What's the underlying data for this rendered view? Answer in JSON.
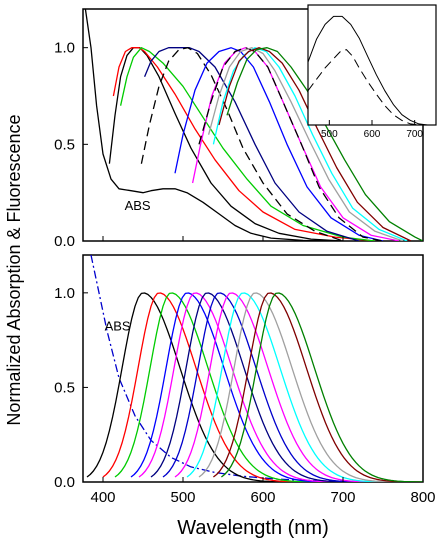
{
  "figure": {
    "ylabel": "Normalized Absorption & Fluorescence",
    "xlabel": "Wavelength (nm)"
  },
  "chart_data": [
    {
      "type": "line",
      "panel": "top",
      "xlim": [
        375,
        800
      ],
      "ylim": [
        0,
        1.2
      ],
      "xticks": [
        400,
        500,
        600,
        700,
        800
      ],
      "yticks": [
        0.0,
        0.5,
        1.0
      ],
      "ytick_labels": [
        "0.0",
        "0.5",
        "1.0"
      ],
      "annotations": [
        {
          "text": "ABS",
          "x": 427,
          "y": 0.16
        }
      ],
      "series": [
        {
          "color": "#000000",
          "dash": "solid",
          "points": [
            [
              378,
              1.2
            ],
            [
              385,
              1.0
            ],
            [
              392,
              0.7
            ],
            [
              400,
              0.45
            ],
            [
              410,
              0.32
            ],
            [
              420,
              0.27
            ],
            [
              435,
              0.26
            ],
            [
              450,
              0.25
            ],
            [
              460,
              0.26
            ],
            [
              475,
              0.27
            ],
            [
              490,
              0.27
            ],
            [
              505,
              0.25
            ],
            [
              525,
              0.2
            ],
            [
              545,
              0.14
            ],
            [
              565,
              0.08
            ],
            [
              585,
              0.04
            ],
            [
              610,
              0.015
            ],
            [
              650,
              0.003
            ],
            [
              700,
              0.0
            ]
          ]
        },
        {
          "color": "#000000",
          "dash": "solid",
          "points": [
            [
              408,
              0.4
            ],
            [
              415,
              0.65
            ],
            [
              422,
              0.85
            ],
            [
              430,
              0.96
            ],
            [
              438,
              1.0
            ],
            [
              446,
              1.0
            ],
            [
              455,
              0.96
            ],
            [
              470,
              0.85
            ],
            [
              490,
              0.66
            ],
            [
              510,
              0.48
            ],
            [
              535,
              0.3
            ],
            [
              560,
              0.18
            ],
            [
              590,
              0.09
            ],
            [
              620,
              0.04
            ],
            [
              660,
              0.01
            ],
            [
              700,
              0.0
            ]
          ]
        },
        {
          "color": "#ff0000",
          "dash": "solid",
          "points": [
            [
              413,
              0.75
            ],
            [
              420,
              0.9
            ],
            [
              428,
              0.98
            ],
            [
              436,
              1.0
            ],
            [
              445,
              1.0
            ],
            [
              452,
              0.98
            ],
            [
              468,
              0.9
            ],
            [
              490,
              0.76
            ],
            [
              515,
              0.58
            ],
            [
              540,
              0.42
            ],
            [
              570,
              0.26
            ],
            [
              600,
              0.15
            ],
            [
              640,
              0.06
            ],
            [
              690,
              0.02
            ],
            [
              740,
              0.0
            ]
          ]
        },
        {
          "color": "#00cc00",
          "dash": "solid",
          "points": [
            [
              422,
              0.7
            ],
            [
              430,
              0.85
            ],
            [
              438,
              0.95
            ],
            [
              448,
              1.0
            ],
            [
              458,
              0.98
            ],
            [
              475,
              0.92
            ],
            [
              500,
              0.8
            ],
            [
              525,
              0.64
            ],
            [
              550,
              0.48
            ],
            [
              580,
              0.32
            ],
            [
              610,
              0.18
            ],
            [
              650,
              0.08
            ],
            [
              700,
              0.02
            ],
            [
              740,
              0.0
            ]
          ]
        },
        {
          "color": "#000080",
          "dash": "solid",
          "points": [
            [
              452,
              0.85
            ],
            [
              460,
              0.93
            ],
            [
              470,
              0.98
            ],
            [
              482,
              1.0
            ],
            [
              495,
              1.0
            ],
            [
              508,
              1.0
            ],
            [
              520,
              0.98
            ],
            [
              540,
              0.9
            ],
            [
              565,
              0.72
            ],
            [
              590,
              0.5
            ],
            [
              615,
              0.3
            ],
            [
              645,
              0.15
            ],
            [
              680,
              0.05
            ],
            [
              720,
              0.0
            ]
          ]
        },
        {
          "color": "#000000",
          "dash": "dash",
          "points": [
            [
              448,
              0.4
            ],
            [
              458,
              0.6
            ],
            [
              470,
              0.8
            ],
            [
              482,
              0.93
            ],
            [
              495,
              0.99
            ],
            [
              506,
              1.0
            ],
            [
              518,
              0.97
            ],
            [
              535,
              0.86
            ],
            [
              555,
              0.68
            ],
            [
              575,
              0.48
            ],
            [
              600,
              0.3
            ],
            [
              630,
              0.14
            ],
            [
              665,
              0.05
            ],
            [
              700,
              0.0
            ]
          ]
        },
        {
          "color": "#0000ff",
          "dash": "solid",
          "points": [
            [
              490,
              0.35
            ],
            [
              500,
              0.55
            ],
            [
              515,
              0.78
            ],
            [
              530,
              0.92
            ],
            [
              545,
              0.98
            ],
            [
              560,
              1.0
            ],
            [
              572,
              0.98
            ],
            [
              588,
              0.9
            ],
            [
              608,
              0.72
            ],
            [
              630,
              0.5
            ],
            [
              655,
              0.28
            ],
            [
              685,
              0.12
            ],
            [
              720,
              0.03
            ],
            [
              750,
              0.0
            ]
          ]
        },
        {
          "color": "#ff00ff",
          "dash": "solid",
          "points": [
            [
              512,
              0.3
            ],
            [
              522,
              0.5
            ],
            [
              536,
              0.75
            ],
            [
              552,
              0.92
            ],
            [
              566,
              0.98
            ],
            [
              578,
              1.0
            ],
            [
              590,
              0.98
            ],
            [
              606,
              0.9
            ],
            [
              625,
              0.72
            ],
            [
              648,
              0.5
            ],
            [
              672,
              0.28
            ],
            [
              700,
              0.12
            ],
            [
              735,
              0.03
            ],
            [
              770,
              0.0
            ]
          ]
        },
        {
          "color": "#000000",
          "dash": "dash",
          "points": [
            [
              520,
              0.5
            ],
            [
              535,
              0.72
            ],
            [
              550,
              0.9
            ],
            [
              565,
              0.98
            ],
            [
              578,
              1.0
            ],
            [
              590,
              0.98
            ],
            [
              606,
              0.9
            ],
            [
              625,
              0.72
            ],
            [
              648,
              0.5
            ],
            [
              670,
              0.28
            ],
            [
              695,
              0.12
            ],
            [
              725,
              0.02
            ],
            [
              750,
              0.0
            ]
          ]
        },
        {
          "color": "#a0a0a0",
          "dash": "solid",
          "points": [
            [
              532,
              0.55
            ],
            [
              545,
              0.75
            ],
            [
              558,
              0.9
            ],
            [
              572,
              0.98
            ],
            [
              586,
              1.0
            ],
            [
              600,
              0.97
            ],
            [
              615,
              0.88
            ],
            [
              635,
              0.72
            ],
            [
              658,
              0.52
            ],
            [
              682,
              0.32
            ],
            [
              708,
              0.15
            ],
            [
              740,
              0.05
            ],
            [
              775,
              0.0
            ]
          ]
        },
        {
          "color": "#00ffff",
          "dash": "solid",
          "points": [
            [
              538,
              0.5
            ],
            [
              550,
              0.72
            ],
            [
              563,
              0.88
            ],
            [
              576,
              0.96
            ],
            [
              590,
              1.0
            ],
            [
              604,
              0.98
            ],
            [
              620,
              0.9
            ],
            [
              640,
              0.75
            ],
            [
              662,
              0.55
            ],
            [
              686,
              0.35
            ],
            [
              712,
              0.17
            ],
            [
              745,
              0.06
            ],
            [
              780,
              0.0
            ]
          ]
        },
        {
          "color": "#800000",
          "dash": "solid",
          "points": [
            [
              545,
              0.6
            ],
            [
              558,
              0.8
            ],
            [
              570,
              0.93
            ],
            [
              582,
              0.98
            ],
            [
              595,
              1.0
            ],
            [
              608,
              0.98
            ],
            [
              624,
              0.92
            ],
            [
              645,
              0.78
            ],
            [
              668,
              0.58
            ],
            [
              692,
              0.38
            ],
            [
              718,
              0.2
            ],
            [
              750,
              0.07
            ],
            [
              785,
              0.0
            ]
          ]
        },
        {
          "color": "#008000",
          "dash": "solid",
          "points": [
            [
              555,
              0.65
            ],
            [
              568,
              0.82
            ],
            [
              580,
              0.94
            ],
            [
              592,
              0.99
            ],
            [
              605,
              1.0
            ],
            [
              618,
              0.98
            ],
            [
              635,
              0.9
            ],
            [
              655,
              0.78
            ],
            [
              678,
              0.6
            ],
            [
              702,
              0.42
            ],
            [
              728,
              0.24
            ],
            [
              758,
              0.1
            ],
            [
              790,
              0.02
            ],
            [
              800,
              0.0
            ]
          ]
        }
      ]
    },
    {
      "type": "line",
      "panel": "inset",
      "xlim": [
        450,
        750
      ],
      "ylim": [
        0,
        1.05
      ],
      "xticks": [
        500,
        600,
        700
      ],
      "series": [
        {
          "color": "#000000",
          "dash": "solid",
          "points": [
            [
              450,
              0.55
            ],
            [
              470,
              0.75
            ],
            [
              490,
              0.88
            ],
            [
              510,
              0.95
            ],
            [
              530,
              0.95
            ],
            [
              550,
              0.88
            ],
            [
              570,
              0.76
            ],
            [
              590,
              0.6
            ],
            [
              610,
              0.44
            ],
            [
              630,
              0.3
            ],
            [
              650,
              0.18
            ],
            [
              670,
              0.09
            ],
            [
              690,
              0.04
            ],
            [
              710,
              0.01
            ],
            [
              730,
              0.0
            ]
          ]
        },
        {
          "color": "#000000",
          "dash": "dash",
          "points": [
            [
              450,
              0.3
            ],
            [
              470,
              0.4
            ],
            [
              490,
              0.5
            ],
            [
              510,
              0.58
            ],
            [
              525,
              0.64
            ],
            [
              540,
              0.66
            ],
            [
              555,
              0.6
            ],
            [
              570,
              0.5
            ],
            [
              590,
              0.38
            ],
            [
              610,
              0.27
            ],
            [
              630,
              0.17
            ],
            [
              650,
              0.09
            ],
            [
              670,
              0.04
            ],
            [
              690,
              0.01
            ],
            [
              710,
              0.0
            ]
          ]
        }
      ]
    },
    {
      "type": "line",
      "panel": "bottom",
      "xlim": [
        375,
        800
      ],
      "ylim": [
        0,
        1.2
      ],
      "xticks": [
        400,
        500,
        600,
        700,
        800
      ],
      "xtick_labels": [
        "400",
        "500",
        "600",
        "700",
        "800"
      ],
      "yticks": [
        0.0,
        0.5,
        1.0
      ],
      "ytick_labels": [
        "0.0",
        "0.5",
        "1.0"
      ],
      "annotations": [
        {
          "text": "ABS",
          "x": 402,
          "y": 0.8
        }
      ],
      "series": [
        {
          "color": "#0000cc",
          "dash": "dashdot",
          "points": [
            [
              385,
              1.2
            ],
            [
              395,
              1.0
            ],
            [
              405,
              0.8
            ],
            [
              420,
              0.55
            ],
            [
              440,
              0.35
            ],
            [
              460,
              0.22
            ],
            [
              485,
              0.13
            ],
            [
              510,
              0.08
            ],
            [
              540,
              0.05
            ],
            [
              575,
              0.03
            ],
            [
              620,
              0.015
            ],
            [
              680,
              0.005
            ],
            [
              740,
              0.0
            ]
          ]
        },
        {
          "color": "#000000",
          "dash": "solid",
          "peak": 450
        },
        {
          "color": "#ff0000",
          "dash": "solid",
          "peak": 470
        },
        {
          "color": "#00cc00",
          "dash": "solid",
          "peak": 485
        },
        {
          "color": "#0000ff",
          "dash": "solid",
          "peak": 505
        },
        {
          "color": "#ff00ff",
          "dash": "solid",
          "peak": 515
        },
        {
          "color": "#000080",
          "dash": "solid",
          "peak": 530
        },
        {
          "color": "#0000cc",
          "dash": "solid",
          "peak": 545
        },
        {
          "color": "#ff00ff",
          "dash": "solid",
          "peak": 560
        },
        {
          "color": "#00ffff",
          "dash": "solid",
          "peak": 575
        },
        {
          "color": "#a0a0a0",
          "dash": "solid",
          "peak": 590
        },
        {
          "color": "#800000",
          "dash": "solid",
          "peak": 608
        },
        {
          "color": "#008000",
          "dash": "solid",
          "peak": 618
        }
      ]
    }
  ]
}
